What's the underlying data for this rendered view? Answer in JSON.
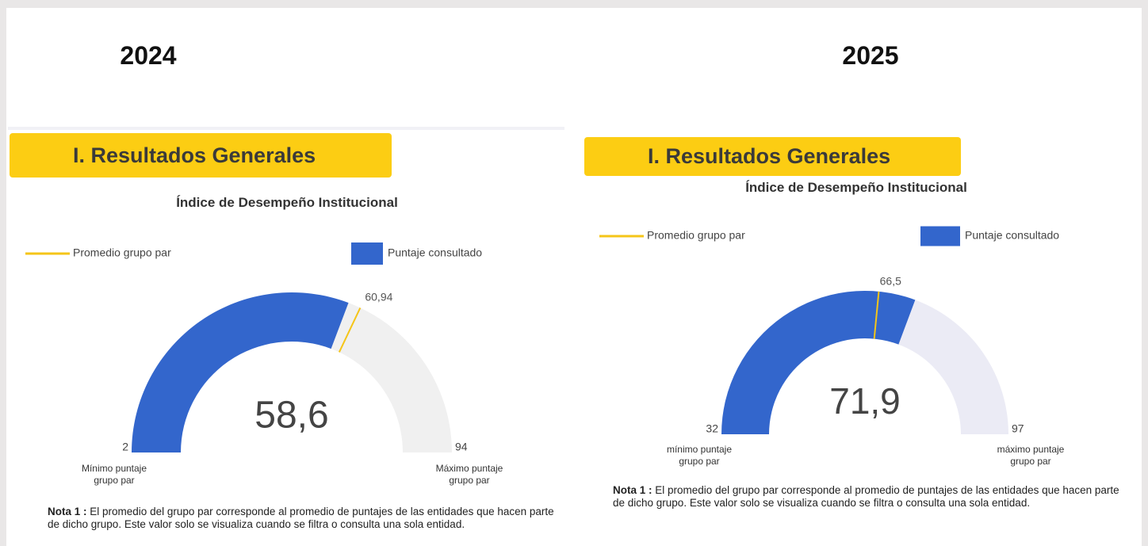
{
  "chart_data": [
    {
      "type": "gauge",
      "year": "2024",
      "section": "I. Resultados Generales",
      "title": "Índice de Desempeño Institucional",
      "series": [
        {
          "name": "Promedio grupo par",
          "color": "#f5c518",
          "values": [
            60.94
          ],
          "value_labels": [
            "60,94"
          ]
        },
        {
          "name": "Puntaje consultado",
          "color": "#3366cc",
          "values": [
            58.6
          ],
          "value_labels": [
            "58,6"
          ]
        }
      ],
      "ylim": [
        2,
        94
      ],
      "yticks": [
        2,
        94
      ],
      "ytick_captions": [
        "Mínimo puntaje grupo par",
        "Máximo puntaje grupo par"
      ],
      "track_color": "#f0f0f0",
      "note_label": "Nota 1 :",
      "note": "El promedio del grupo par corresponde al promedio de puntajes de las entidades que hacen parte de dicho grupo.  Este valor solo se visualiza cuando se filtra o consulta una sola entidad."
    },
    {
      "type": "gauge",
      "year": "2025",
      "section": "I. Resultados Generales",
      "title": "Índice de Desempeño Institucional",
      "series": [
        {
          "name": "Promedio grupo par",
          "color": "#f5c518",
          "values": [
            66.5
          ],
          "value_labels": [
            "66,5"
          ]
        },
        {
          "name": "Puntaje consultado",
          "color": "#3366cc",
          "values": [
            71.9
          ],
          "value_labels": [
            "71,9"
          ]
        }
      ],
      "ylim": [
        32,
        97
      ],
      "yticks": [
        32,
        97
      ],
      "ytick_captions": [
        "mínimo puntaje grupo par",
        "máximo puntaje grupo par"
      ],
      "track_color": "#ebebf5",
      "note_label": "Nota 1 :",
      "note": "El promedio del grupo par corresponde al promedio de puntajes de las entidades que hacen parte de dicho grupo.  Este valor solo se visualiza cuando se filtra o consulta una sola entidad."
    }
  ]
}
